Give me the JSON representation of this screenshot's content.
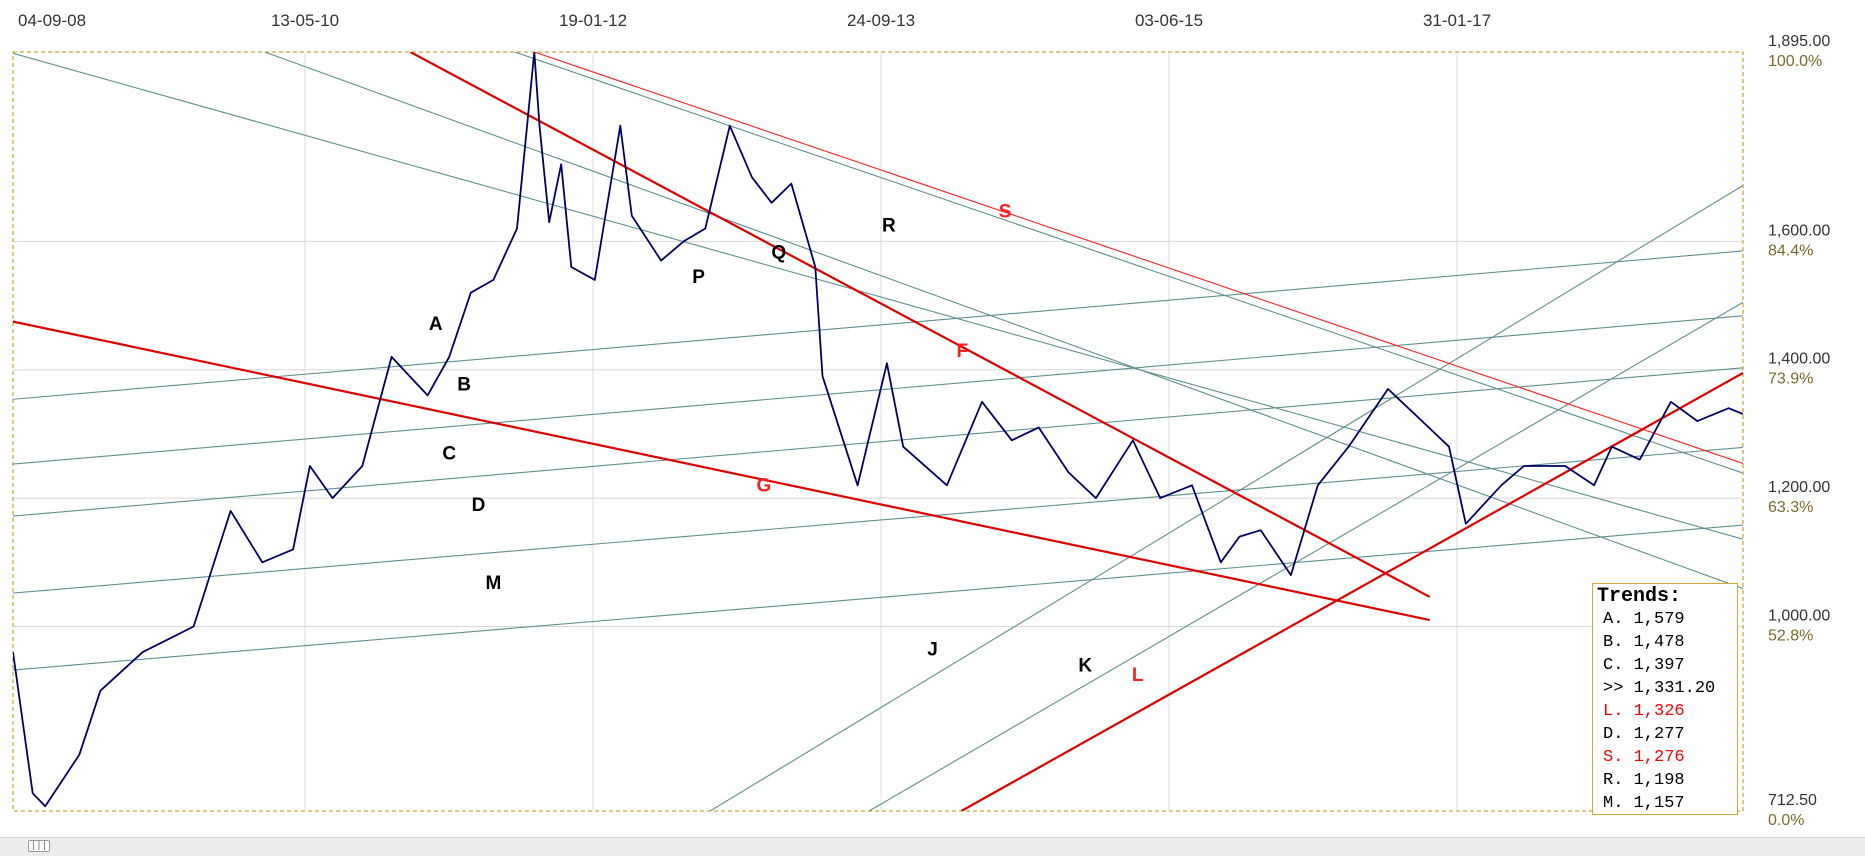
{
  "chart_data": {
    "type": "line",
    "title": "",
    "xlabel": "",
    "ylabel": "",
    "x_tick_labels": [
      "04-09-08",
      "13-05-10",
      "19-01-12",
      "24-09-13",
      "03-06-15",
      "31-01-17"
    ],
    "y_ticks": [
      {
        "value": 1895,
        "label": "1,895.00",
        "pct": "100.0%"
      },
      {
        "value": 1600,
        "label": "1,600.00",
        "pct": "84.4%"
      },
      {
        "value": 1400,
        "label": "1,400.00",
        "pct": "73.9%"
      },
      {
        "value": 1200,
        "label": "1,200.00",
        "pct": "63.3%"
      },
      {
        "value": 1000,
        "label": "1,000.00",
        "pct": "52.8%"
      },
      {
        "value": 712.5,
        "label": "712.50",
        "pct": "0.0%"
      }
    ],
    "ylim": [
      712.5,
      1895
    ],
    "xlim": [
      "2008-09-04",
      "2018-07-15"
    ],
    "grid": true,
    "series": [
      {
        "color": "#000066",
        "x": [
          "2008-09-04",
          "2008-10-15",
          "2008-11-10",
          "2009-01-20",
          "2009-03-05",
          "2009-06-01",
          "2009-09-15",
          "2009-12-01",
          "2010-02-05",
          "2010-04-10",
          "2010-05-15",
          "2010-07-01",
          "2010-09-01",
          "2010-11-01",
          "2011-01-15",
          "2011-03-01",
          "2011-04-15",
          "2011-06-01",
          "2011-07-20",
          "2011-08-25",
          "2011-09-05",
          "2011-09-25",
          "2011-10-20",
          "2011-11-10",
          "2011-12-29",
          "2012-02-20",
          "2012-03-15",
          "2012-05-15",
          "2012-07-01",
          "2012-08-15",
          "2012-10-05",
          "2012-11-20",
          "2012-12-31",
          "2013-02-10",
          "2013-04-01",
          "2013-04-16",
          "2013-06-28",
          "2013-08-28",
          "2013-10-01",
          "2013-12-31",
          "2014-03-14",
          "2014-05-15",
          "2014-07-10",
          "2014-09-10",
          "2014-11-06",
          "2015-01-22",
          "2015-03-20",
          "2015-05-25",
          "2015-07-24",
          "2015-09-01",
          "2015-10-15",
          "2015-12-17",
          "2016-02-11",
          "2016-04-15",
          "2016-07-06",
          "2016-09-15",
          "2016-11-10",
          "2016-12-15",
          "2017-02-27",
          "2017-04-15",
          "2017-07-10",
          "2017-09-08",
          "2017-10-15",
          "2017-12-12",
          "2018-02-15",
          "2018-04-11",
          "2018-06-15",
          "2018-07-15"
        ],
        "y": [
          960,
          740,
          720,
          800,
          900,
          960,
          1000,
          1180,
          1100,
          1120,
          1250,
          1200,
          1250,
          1420,
          1360,
          1420,
          1520,
          1540,
          1620,
          1895,
          1780,
          1630,
          1720,
          1560,
          1540,
          1780,
          1640,
          1570,
          1600,
          1620,
          1780,
          1700,
          1660,
          1690,
          1560,
          1390,
          1220,
          1410,
          1280,
          1220,
          1350,
          1290,
          1310,
          1240,
          1200,
          1290,
          1200,
          1220,
          1100,
          1140,
          1150,
          1080,
          1220,
          1280,
          1370,
          1320,
          1280,
          1160,
          1220,
          1250,
          1250,
          1220,
          1280,
          1260,
          1350,
          1320,
          1340,
          1331
        ]
      }
    ],
    "trend_lines": [
      {
        "label": "A",
        "color": "#5f8f8f",
        "x": [
          "2008-09-04",
          "2018-07-15"
        ],
        "y": [
          1354,
          1585
        ]
      },
      {
        "label": "B",
        "color": "#5f8f8f",
        "x": [
          "2008-09-04",
          "2018-07-15"
        ],
        "y": [
          1253,
          1484
        ]
      },
      {
        "label": "C",
        "color": "#5f8f8f",
        "x": [
          "2008-09-04",
          "2018-07-15"
        ],
        "y": [
          1172,
          1403
        ]
      },
      {
        "label": "D",
        "color": "#5f8f8f",
        "x": [
          "2008-09-04",
          "2018-07-15"
        ],
        "y": [
          1052,
          1279
        ]
      },
      {
        "label": "M",
        "color": "#5f8f8f",
        "x": [
          "2008-09-04",
          "2018-07-15"
        ],
        "y": [
          932,
          1158
        ]
      },
      {
        "label": "J",
        "color": "#5f8f8f",
        "x": [
          "2012-08-25",
          "2018-07-15"
        ],
        "y": [
          712.5,
          1687
        ]
      },
      {
        "label": "K",
        "color": "#5f8f8f",
        "x": [
          "2013-07-22",
          "2018-07-15"
        ],
        "y": [
          712.5,
          1505
        ]
      },
      {
        "label": "P",
        "color": "#5f8f8f",
        "x": [
          "2008-09-04",
          "2018-07-15"
        ],
        "y": [
          1893,
          1136
        ]
      },
      {
        "label": "Q",
        "color": "#5f8f8f",
        "x": [
          "2010-02-10",
          "2018-07-15"
        ],
        "y": [
          1895,
          1059
        ]
      },
      {
        "label": "R",
        "color": "#5f8f8f",
        "x": [
          "2011-07-15",
          "2018-07-15"
        ],
        "y": [
          1895,
          1239
        ]
      },
      {
        "label": "S",
        "color": "#ff2020",
        "x": [
          "2011-08-25",
          "2018-07-15"
        ],
        "y": [
          1895,
          1254
        ]
      },
      {
        "label": "F",
        "color": "#dd0000",
        "x": [
          "2010-12-10",
          "2016-10-01"
        ],
        "y": [
          1895,
          1046
        ]
      },
      {
        "label": "G",
        "color": "#dd0000",
        "x": [
          "2008-09-04",
          "2016-10-01"
        ],
        "y": [
          1475,
          1010
        ]
      },
      {
        "label": "L",
        "color": "#dd0000",
        "x": [
          "2014-01-30",
          "2018-07-15"
        ],
        "y": [
          712.5,
          1395
        ]
      }
    ],
    "annotations": [
      {
        "text": "A",
        "x": "2011-02-01",
        "y": 1462,
        "color": "#000000"
      },
      {
        "text": "B",
        "x": "2011-04-01",
        "y": 1368,
        "color": "#000000"
      },
      {
        "text": "C",
        "x": "2011-03-01",
        "y": 1260,
        "color": "#000000"
      },
      {
        "text": "D",
        "x": "2011-05-01",
        "y": 1180,
        "color": "#000000"
      },
      {
        "text": "M",
        "x": "2011-06-01",
        "y": 1058,
        "color": "#000000"
      },
      {
        "text": "P",
        "x": "2012-08-01",
        "y": 1535,
        "color": "#000000"
      },
      {
        "text": "Q",
        "x": "2013-01-15",
        "y": 1573,
        "color": "#000000"
      },
      {
        "text": "R",
        "x": "2013-09-01",
        "y": 1615,
        "color": "#000000"
      },
      {
        "text": "S",
        "x": "2014-05-01",
        "y": 1637,
        "color": "#ff2020"
      },
      {
        "text": "F",
        "x": "2014-02-01",
        "y": 1420,
        "color": "#ff2020"
      },
      {
        "text": "G",
        "x": "2012-12-15",
        "y": 1210,
        "color": "#ff2020"
      },
      {
        "text": "J",
        "x": "2013-12-01",
        "y": 955,
        "color": "#000000"
      },
      {
        "text": "K",
        "x": "2014-10-15",
        "y": 930,
        "color": "#000000"
      },
      {
        "text": "L",
        "x": "2015-02-01",
        "y": 915,
        "color": "#ff2020"
      }
    ]
  },
  "legend": {
    "title": "Trends:",
    "rows": [
      {
        "text": "A. 1,579",
        "color": "#000000"
      },
      {
        "text": "B. 1,478",
        "color": "#000000"
      },
      {
        "text": "C. 1,397",
        "color": "#000000"
      },
      {
        "text": ">> 1,331.20",
        "color": "#000000"
      },
      {
        "text": "L. 1,326",
        "color": "#ff0000"
      },
      {
        "text": "D. 1,277",
        "color": "#000000"
      },
      {
        "text": "S. 1,276",
        "color": "#ff0000"
      },
      {
        "text": "R. 1,198",
        "color": "#000000"
      },
      {
        "text": "M. 1,157",
        "color": "#000000"
      }
    ]
  },
  "scrollbar": {
    "thumb_glyph": "|||"
  }
}
